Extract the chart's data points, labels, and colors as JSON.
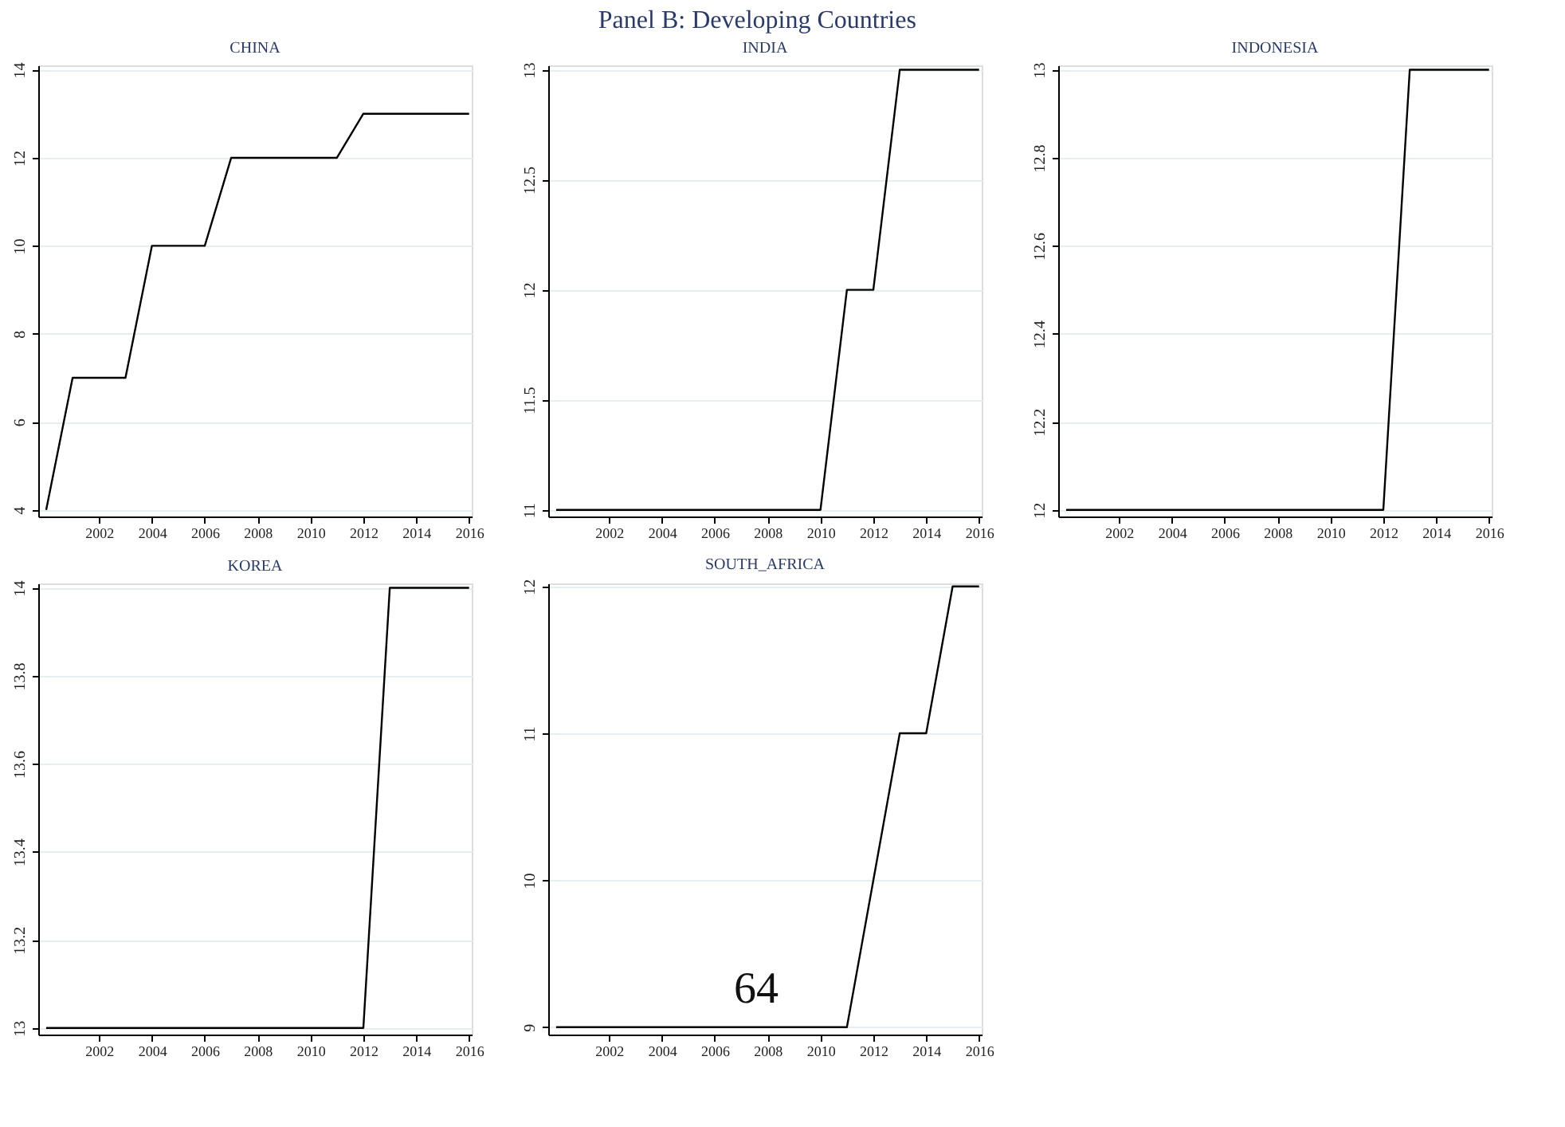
{
  "chart_data": [
    {
      "type": "line",
      "title": "CHINA",
      "annotations": [
        "Panel B: Developing Countries"
      ],
      "x": [
        2000,
        2001,
        2002,
        2003,
        2004,
        2005,
        2006,
        2007,
        2008,
        2009,
        2010,
        2011,
        2012,
        2013,
        2014,
        2015,
        2016
      ],
      "series": [
        {
          "color": "#000000",
          "values": [
            4,
            7,
            7,
            7,
            10,
            10,
            10,
            12,
            12,
            12,
            12,
            12,
            13,
            13,
            13,
            13,
            13
          ]
        }
      ],
      "xlim": [
        1999.7,
        2016.1
      ],
      "xticks": [
        2002,
        2004,
        2006,
        2008,
        2010,
        2012,
        2014,
        2016
      ],
      "ylim": [
        3.85,
        14.1
      ],
      "yticks": [
        4,
        6,
        8,
        10,
        12,
        14
      ],
      "grid": "y"
    },
    {
      "type": "line",
      "title": "INDIA",
      "x": [
        2000,
        2001,
        2002,
        2003,
        2004,
        2005,
        2006,
        2007,
        2008,
        2009,
        2010,
        2011,
        2012,
        2013,
        2014,
        2015,
        2016
      ],
      "series": [
        {
          "color": "#000000",
          "values": [
            11,
            11,
            11,
            11,
            11,
            11,
            11,
            11,
            11,
            11,
            11,
            12,
            12,
            13,
            13,
            13,
            13
          ]
        }
      ],
      "xlim": [
        1999.7,
        2016.1
      ],
      "xticks": [
        2002,
        2004,
        2006,
        2008,
        2010,
        2012,
        2014,
        2016
      ],
      "ylim": [
        10.97,
        13.02
      ],
      "yticks": [
        11,
        11.5,
        12,
        12.5,
        13
      ],
      "grid": "y"
    },
    {
      "type": "line",
      "title": "INDONESIA",
      "x": [
        2000,
        2001,
        2002,
        2003,
        2004,
        2005,
        2006,
        2007,
        2008,
        2009,
        2010,
        2011,
        2012,
        2013,
        2014,
        2015,
        2016
      ],
      "series": [
        {
          "color": "#000000",
          "values": [
            12,
            12,
            12,
            12,
            12,
            12,
            12,
            12,
            12,
            12,
            12,
            12,
            12,
            13,
            13,
            13,
            13
          ]
        }
      ],
      "xlim": [
        1999.7,
        2016.1
      ],
      "xticks": [
        2002,
        2004,
        2006,
        2008,
        2010,
        2012,
        2014,
        2016
      ],
      "ylim": [
        11.985,
        13.01
      ],
      "yticks": [
        12,
        12.2,
        12.4,
        12.6,
        12.8,
        13
      ],
      "grid": "y"
    },
    {
      "type": "line",
      "title": "KOREA",
      "x": [
        2000,
        2001,
        2002,
        2003,
        2004,
        2005,
        2006,
        2007,
        2008,
        2009,
        2010,
        2011,
        2012,
        2013,
        2014,
        2015,
        2016
      ],
      "series": [
        {
          "color": "#000000",
          "values": [
            13,
            13,
            13,
            13,
            13,
            13,
            13,
            13,
            13,
            13,
            13,
            13,
            13,
            14,
            14,
            14,
            14
          ]
        }
      ],
      "xlim": [
        1999.7,
        2016.1
      ],
      "xticks": [
        2002,
        2004,
        2006,
        2008,
        2010,
        2012,
        2014,
        2016
      ],
      "ylim": [
        12.985,
        14.01
      ],
      "yticks": [
        13,
        13.2,
        13.4,
        13.6,
        13.8,
        14
      ],
      "grid": "y"
    },
    {
      "type": "line",
      "title": "SOUTH_AFRICA",
      "annotations": [
        "64"
      ],
      "x": [
        2000,
        2001,
        2002,
        2003,
        2004,
        2005,
        2006,
        2007,
        2008,
        2009,
        2010,
        2011,
        2012,
        2013,
        2014,
        2015,
        2016
      ],
      "series": [
        {
          "color": "#000000",
          "values": [
            9,
            9,
            9,
            9,
            9,
            9,
            9,
            9,
            9,
            9,
            9,
            9,
            10,
            11,
            11,
            12,
            12
          ]
        }
      ],
      "xlim": [
        1999.7,
        2016.1
      ],
      "xticks": [
        2002,
        2004,
        2006,
        2008,
        2010,
        2012,
        2014,
        2016
      ],
      "ylim": [
        8.95,
        12.02
      ],
      "yticks": [
        9,
        10,
        11,
        12
      ],
      "grid": "y"
    }
  ]
}
